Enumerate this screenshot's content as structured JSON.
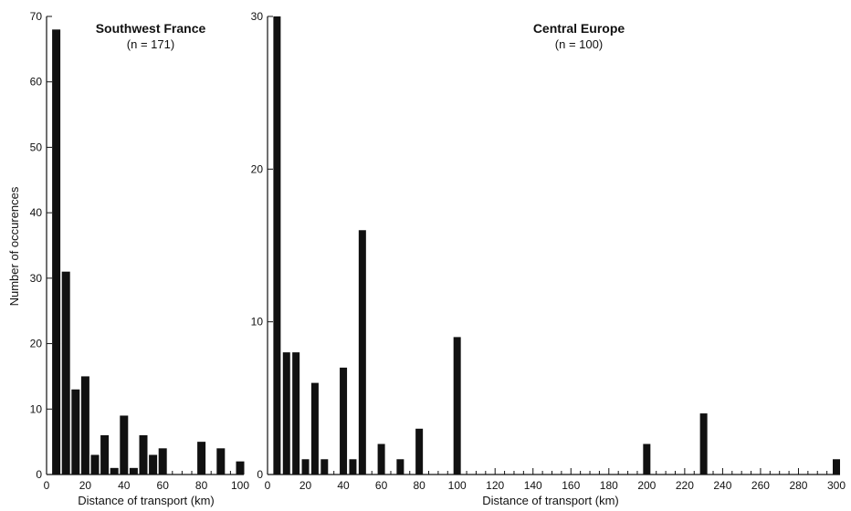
{
  "ylabel": "Number of occurences",
  "chart_data": [
    {
      "type": "bar",
      "title": "Southwest France",
      "subtitle": "(n = 171)",
      "xlabel": "Distance of transport (km)",
      "ylabel": "Number of occurences",
      "xlim": [
        0,
        100
      ],
      "ylim": [
        0,
        70
      ],
      "xticks": [
        0,
        20,
        40,
        60,
        80,
        100
      ],
      "yticks": [
        0,
        10,
        20,
        30,
        40,
        50,
        60,
        70
      ],
      "x": [
        5,
        10,
        15,
        20,
        25,
        30,
        35,
        40,
        45,
        50,
        55,
        60,
        65,
        70,
        75,
        80,
        85,
        90,
        95,
        100
      ],
      "values": [
        68,
        31,
        13,
        15,
        3,
        6,
        1,
        9,
        1,
        6,
        3,
        4,
        0,
        0,
        0,
        5,
        0,
        4,
        0,
        2
      ]
    },
    {
      "type": "bar",
      "title": "Central Europe",
      "subtitle": "(n = 100)",
      "xlabel": "Distance of transport (km)",
      "ylabel": "",
      "xlim": [
        0,
        300
      ],
      "ylim": [
        0,
        30
      ],
      "xticks": [
        0,
        20,
        40,
        60,
        80,
        100,
        120,
        140,
        160,
        180,
        200,
        220,
        240,
        260,
        280,
        300
      ],
      "yticks": [
        0,
        10,
        20,
        30
      ],
      "x": [
        5,
        10,
        15,
        20,
        25,
        30,
        40,
        45,
        50,
        60,
        70,
        80,
        100,
        200,
        230,
        300
      ],
      "values": [
        30,
        8,
        8,
        1,
        6,
        1,
        7,
        1,
        16,
        2,
        1,
        3,
        9,
        2,
        4,
        1
      ]
    }
  ]
}
